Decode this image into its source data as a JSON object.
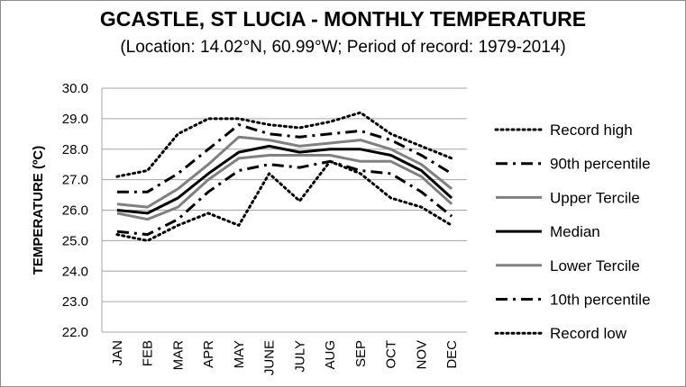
{
  "chart_data": {
    "type": "line",
    "title": "GCASTLE, ST LUCIA - MONTHLY TEMPERATURE",
    "subtitle": "(Location: 14.02°N, 60.99°W; Period of record: 1979-2014)",
    "xlabel": "",
    "ylabel": "TEMPERATURE (ºC)",
    "ylim": [
      22.0,
      30.0
    ],
    "yticks": [
      "22.0",
      "23.0",
      "24.0",
      "25.0",
      "26.0",
      "27.0",
      "28.0",
      "29.0",
      "30.0"
    ],
    "grid": true,
    "legend_position": "right",
    "categories": [
      "JAN",
      "FEB",
      "MAR",
      "APR",
      "MAY",
      "JUNE",
      "JULY",
      "AUG",
      "SEP",
      "OCT",
      "NOV",
      "DEC"
    ],
    "series": [
      {
        "name": "Record high",
        "color": "#000000",
        "style": "dotted",
        "values": [
          27.1,
          27.3,
          28.5,
          29.0,
          29.0,
          28.8,
          28.7,
          28.9,
          29.2,
          28.5,
          28.1,
          27.7
        ]
      },
      {
        "name": "90th percentile",
        "color": "#000000",
        "style": "dashdot",
        "values": [
          26.6,
          26.6,
          27.2,
          28.0,
          28.8,
          28.5,
          28.4,
          28.5,
          28.6,
          28.3,
          27.8,
          27.2
        ]
      },
      {
        "name": "Upper Tercile",
        "color": "#808080",
        "style": "solid",
        "values": [
          26.2,
          26.1,
          26.7,
          27.5,
          28.4,
          28.3,
          28.1,
          28.2,
          28.3,
          28.0,
          27.5,
          26.7
        ]
      },
      {
        "name": "Median",
        "color": "#000000",
        "style": "solid",
        "values": [
          26.0,
          25.9,
          26.4,
          27.2,
          27.9,
          28.1,
          27.9,
          28.0,
          28.0,
          27.8,
          27.3,
          26.4
        ]
      },
      {
        "name": "Lower Tercile",
        "color": "#808080",
        "style": "solid",
        "values": [
          25.9,
          25.7,
          26.1,
          27.0,
          27.7,
          27.8,
          27.8,
          27.8,
          27.6,
          27.6,
          27.1,
          26.2
        ]
      },
      {
        "name": "10th percentile",
        "color": "#000000",
        "style": "dashdot",
        "values": [
          25.3,
          25.2,
          25.7,
          26.6,
          27.3,
          27.5,
          27.4,
          27.6,
          27.3,
          27.2,
          26.6,
          25.8
        ]
      },
      {
        "name": "Record low",
        "color": "#000000",
        "style": "dotted",
        "values": [
          25.2,
          25.0,
          25.5,
          25.9,
          25.5,
          27.2,
          26.3,
          27.6,
          27.2,
          26.4,
          26.1,
          25.5
        ]
      }
    ]
  }
}
